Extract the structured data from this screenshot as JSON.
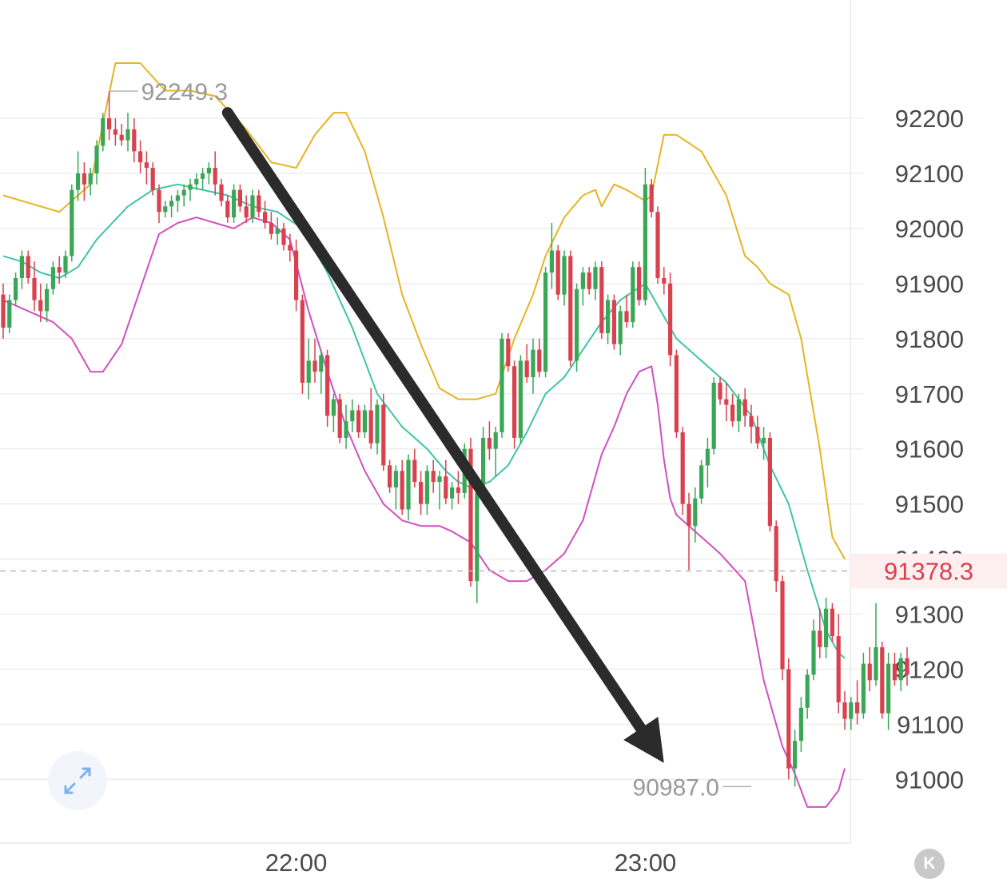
{
  "chart_data": {
    "type": "candlestick",
    "y_ticks": [
      "92200",
      "92100",
      "92000",
      "91900",
      "91800",
      "91700",
      "91600",
      "91500",
      "91400",
      "91300",
      "91200",
      "91100",
      "91000"
    ],
    "ylim": [
      90870,
      92400
    ],
    "x_ticks": [
      {
        "label": "22:00",
        "index": 47
      },
      {
        "label": "23:00",
        "index": 103
      }
    ],
    "high_marker": {
      "label": "92249.3",
      "value": 92249.3,
      "index": 17
    },
    "low_marker": {
      "label": "90987.0",
      "value": 90987.0,
      "index": 120
    },
    "current_price": {
      "label": "91378.3",
      "value": 91378.3
    },
    "colors": {
      "up": "#3aa757",
      "down": "#d9414e",
      "upper_band": "#e6b422",
      "mid_band": "#3ec4a6",
      "lower_band": "#d24fbf",
      "arrow": "#2b2b2b",
      "grid": "#eeeeee"
    },
    "candles": [
      [
        91880,
        91900,
        91800,
        91820
      ],
      [
        91820,
        91880,
        91810,
        91870
      ],
      [
        91870,
        91920,
        91860,
        91910
      ],
      [
        91910,
        91960,
        91890,
        91950
      ],
      [
        91950,
        91960,
        91900,
        91910
      ],
      [
        91910,
        91940,
        91850,
        91870
      ],
      [
        91870,
        91900,
        91830,
        91850
      ],
      [
        91850,
        91900,
        91830,
        91890
      ],
      [
        91890,
        91940,
        91880,
        91930
      ],
      [
        91930,
        91950,
        91900,
        91920
      ],
      [
        91920,
        91960,
        91910,
        91950
      ],
      [
        91950,
        92080,
        91940,
        92070
      ],
      [
        92070,
        92140,
        92050,
        92100
      ],
      [
        92100,
        92120,
        92050,
        92080
      ],
      [
        92080,
        92110,
        92060,
        92100
      ],
      [
        92100,
        92160,
        92080,
        92150
      ],
      [
        92150,
        92210,
        92140,
        92200
      ],
      [
        92200,
        92249,
        92160,
        92180
      ],
      [
        92180,
        92200,
        92150,
        92170
      ],
      [
        92170,
        92190,
        92150,
        92160
      ],
      [
        92160,
        92210,
        92140,
        92180
      ],
      [
        92180,
        92200,
        92120,
        92140
      ],
      [
        92140,
        92160,
        92100,
        92120
      ],
      [
        92120,
        92140,
        92080,
        92110
      ],
      [
        92110,
        92120,
        92060,
        92070
      ],
      [
        92070,
        92080,
        92010,
        92030
      ],
      [
        92030,
        92050,
        92020,
        92040
      ],
      [
        92040,
        92060,
        92020,
        92050
      ],
      [
        92050,
        92070,
        92030,
        92060
      ],
      [
        92060,
        92080,
        92040,
        92070
      ],
      [
        92070,
        92090,
        92050,
        92080
      ],
      [
        92080,
        92100,
        92070,
        92090
      ],
      [
        92090,
        92110,
        92070,
        92100
      ],
      [
        92100,
        92120,
        92080,
        92110
      ],
      [
        92110,
        92140,
        92060,
        92080
      ],
      [
        92080,
        92090,
        92040,
        92050
      ],
      [
        92050,
        92060,
        92010,
        92020
      ],
      [
        92020,
        92080,
        92010,
        92070
      ],
      [
        92070,
        92080,
        92030,
        92040
      ],
      [
        92040,
        92060,
        92010,
        92020
      ],
      [
        92020,
        92070,
        92010,
        92060
      ],
      [
        92060,
        92070,
        92020,
        92030
      ],
      [
        92030,
        92050,
        92000,
        92010
      ],
      [
        92010,
        92030,
        91980,
        91990
      ],
      [
        91990,
        92020,
        91970,
        92000
      ],
      [
        92000,
        92010,
        91960,
        91970
      ],
      [
        91970,
        91990,
        91940,
        91960
      ],
      [
        91960,
        91980,
        91850,
        91870
      ],
      [
        91870,
        91880,
        91700,
        91720
      ],
      [
        91720,
        91800,
        91690,
        91760
      ],
      [
        91760,
        91800,
        91720,
        91740
      ],
      [
        91740,
        91780,
        91700,
        91770
      ],
      [
        91770,
        91780,
        91640,
        91660
      ],
      [
        91660,
        91700,
        91630,
        91690
      ],
      [
        91690,
        91700,
        91610,
        91620
      ],
      [
        91620,
        91680,
        91600,
        91650
      ],
      [
        91650,
        91690,
        91630,
        91670
      ],
      [
        91670,
        91680,
        91620,
        91630
      ],
      [
        91630,
        91680,
        91620,
        91670
      ],
      [
        91670,
        91710,
        91600,
        91610
      ],
      [
        91610,
        91690,
        91590,
        91680
      ],
      [
        91680,
        91700,
        91560,
        91570
      ],
      [
        91570,
        91580,
        91520,
        91530
      ],
      [
        91530,
        91570,
        91490,
        91560
      ],
      [
        91560,
        91580,
        91480,
        91490
      ],
      [
        91490,
        91590,
        91470,
        91580
      ],
      [
        91580,
        91600,
        91530,
        91540
      ],
      [
        91540,
        91560,
        91480,
        91500
      ],
      [
        91500,
        91570,
        91480,
        91560
      ],
      [
        91560,
        91580,
        91520,
        91540
      ],
      [
        91540,
        91560,
        91490,
        91550
      ],
      [
        91550,
        91580,
        91500,
        91510
      ],
      [
        91510,
        91540,
        91490,
        91530
      ],
      [
        91530,
        91560,
        91500,
        91520
      ],
      [
        91520,
        91610,
        91510,
        91600
      ],
      [
        91600,
        91620,
        91350,
        91360
      ],
      [
        91360,
        91540,
        91320,
        91520
      ],
      [
        91520,
        91640,
        91500,
        91620
      ],
      [
        91620,
        91650,
        91580,
        91600
      ],
      [
        91600,
        91640,
        91550,
        91630
      ],
      [
        91630,
        91810,
        91620,
        91800
      ],
      [
        91800,
        91810,
        91740,
        91750
      ],
      [
        91750,
        91760,
        91600,
        91620
      ],
      [
        91620,
        91770,
        91610,
        91760
      ],
      [
        91760,
        91790,
        91720,
        91730
      ],
      [
        91730,
        91800,
        91700,
        91780
      ],
      [
        91780,
        91800,
        91730,
        91740
      ],
      [
        91740,
        91930,
        91730,
        91920
      ],
      [
        91920,
        92010,
        91890,
        91960
      ],
      [
        91960,
        91970,
        91870,
        91880
      ],
      [
        91880,
        91960,
        91860,
        91950
      ],
      [
        91950,
        91960,
        91750,
        91760
      ],
      [
        91760,
        91900,
        91740,
        91890
      ],
      [
        91890,
        91930,
        91860,
        91920
      ],
      [
        91920,
        91930,
        91880,
        91890
      ],
      [
        91890,
        91940,
        91870,
        91930
      ],
      [
        91930,
        91940,
        91800,
        91810
      ],
      [
        91810,
        91880,
        91790,
        91870
      ],
      [
        91870,
        91880,
        91780,
        91790
      ],
      [
        91790,
        91860,
        91770,
        91850
      ],
      [
        91850,
        91880,
        91820,
        91830
      ],
      [
        91830,
        91940,
        91820,
        91930
      ],
      [
        91930,
        91940,
        91860,
        91870
      ],
      [
        91870,
        92110,
        91860,
        92080
      ],
      [
        92080,
        92090,
        92020,
        92030
      ],
      [
        92030,
        92040,
        91900,
        91910
      ],
      [
        91910,
        91930,
        91880,
        91900
      ],
      [
        91900,
        91920,
        91750,
        91770
      ],
      [
        91770,
        91780,
        91620,
        91630
      ],
      [
        91630,
        91640,
        91480,
        91500
      ],
      [
        91500,
        91520,
        91380,
        91460
      ],
      [
        91460,
        91530,
        91430,
        91510
      ],
      [
        91510,
        91580,
        91500,
        91570
      ],
      [
        91570,
        91620,
        91530,
        91600
      ],
      [
        91600,
        91730,
        91590,
        91720
      ],
      [
        91720,
        91730,
        91680,
        91690
      ],
      [
        91690,
        91720,
        91650,
        91680
      ],
      [
        91680,
        91700,
        91640,
        91650
      ],
      [
        91650,
        91700,
        91630,
        91690
      ],
      [
        91690,
        91710,
        91640,
        91660
      ],
      [
        91660,
        91680,
        91610,
        91640
      ],
      [
        91640,
        91660,
        91600,
        91610
      ],
      [
        91610,
        91640,
        91580,
        91620
      ],
      [
        91620,
        91630,
        91450,
        91460
      ],
      [
        91460,
        91470,
        91340,
        91360
      ],
      [
        91360,
        91370,
        91180,
        91200
      ],
      [
        91200,
        91220,
        91000,
        91020
      ],
      [
        91020,
        91090,
        90987,
        91070
      ],
      [
        91070,
        91150,
        91050,
        91130
      ],
      [
        91130,
        91200,
        91110,
        91190
      ],
      [
        91190,
        91290,
        91180,
        91270
      ],
      [
        91270,
        91310,
        91220,
        91240
      ],
      [
        91240,
        91330,
        91220,
        91310
      ],
      [
        91310,
        91320,
        91250,
        91260
      ],
      [
        91260,
        91300,
        91120,
        91140
      ],
      [
        91140,
        91160,
        91090,
        91110
      ],
      [
        91110,
        91150,
        91090,
        91140
      ],
      [
        91140,
        91180,
        91100,
        91120
      ],
      [
        91120,
        91230,
        91110,
        91210
      ],
      [
        91210,
        91240,
        91160,
        91180
      ],
      [
        91180,
        91320,
        91170,
        91240
      ],
      [
        91240,
        91250,
        91110,
        91120
      ],
      [
        91120,
        91230,
        91090,
        91210
      ],
      [
        91210,
        91230,
        91170,
        91180
      ],
      [
        91180,
        91230,
        91160,
        91220
      ],
      [
        91220,
        91240,
        91170,
        91190
      ]
    ],
    "upper_band": [
      [
        0,
        92060
      ],
      [
        3,
        92050
      ],
      [
        9,
        92030
      ],
      [
        12,
        92060
      ],
      [
        14,
        92080
      ],
      [
        18,
        92300
      ],
      [
        22,
        92300
      ],
      [
        26,
        92250
      ],
      [
        30,
        92250
      ],
      [
        34,
        92240
      ],
      [
        39,
        92180
      ],
      [
        43,
        92120
      ],
      [
        47,
        92110
      ],
      [
        50,
        92170
      ],
      [
        53,
        92210
      ],
      [
        55,
        92210
      ],
      [
        58,
        92140
      ],
      [
        61,
        92020
      ],
      [
        64,
        91880
      ],
      [
        67,
        91790
      ],
      [
        70,
        91710
      ],
      [
        73,
        91690
      ],
      [
        76,
        91690
      ],
      [
        79,
        91700
      ],
      [
        82,
        91800
      ],
      [
        85,
        91880
      ],
      [
        87,
        91950
      ],
      [
        90,
        92020
      ],
      [
        93,
        92060
      ],
      [
        95,
        92070
      ],
      [
        96,
        92040
      ],
      [
        98,
        92080
      ],
      [
        100,
        92070
      ],
      [
        103,
        92050
      ],
      [
        104,
        92060
      ],
      [
        106,
        92170
      ],
      [
        108,
        92170
      ],
      [
        112,
        92140
      ],
      [
        116,
        92060
      ],
      [
        119,
        91950
      ],
      [
        121,
        91930
      ],
      [
        123,
        91900
      ],
      [
        126,
        91880
      ],
      [
        128,
        91800
      ],
      [
        131,
        91600
      ],
      [
        133,
        91440
      ],
      [
        135,
        91400
      ]
    ],
    "mid_band": [
      [
        0,
        91950
      ],
      [
        3,
        91940
      ],
      [
        6,
        91920
      ],
      [
        9,
        91910
      ],
      [
        12,
        91930
      ],
      [
        15,
        91980
      ],
      [
        20,
        92040
      ],
      [
        24,
        92070
      ],
      [
        28,
        92080
      ],
      [
        32,
        92070
      ],
      [
        36,
        92060
      ],
      [
        40,
        92040
      ],
      [
        44,
        92030
      ],
      [
        48,
        92000
      ],
      [
        52,
        91920
      ],
      [
        56,
        91820
      ],
      [
        60,
        91700
      ],
      [
        64,
        91640
      ],
      [
        68,
        91600
      ],
      [
        71,
        91560
      ],
      [
        73,
        91540
      ],
      [
        75,
        91530
      ],
      [
        78,
        91540
      ],
      [
        81,
        91570
      ],
      [
        84,
        91630
      ],
      [
        87,
        91700
      ],
      [
        90,
        91730
      ],
      [
        93,
        91780
      ],
      [
        96,
        91830
      ],
      [
        99,
        91870
      ],
      [
        103,
        91900
      ],
      [
        105,
        91860
      ],
      [
        108,
        91800
      ],
      [
        112,
        91760
      ],
      [
        116,
        91720
      ],
      [
        120,
        91660
      ],
      [
        123,
        91570
      ],
      [
        126,
        91500
      ],
      [
        129,
        91380
      ],
      [
        132,
        91270
      ],
      [
        134,
        91230
      ],
      [
        135,
        91220
      ]
    ],
    "lower_band": [
      [
        0,
        91870
      ],
      [
        4,
        91850
      ],
      [
        8,
        91830
      ],
      [
        11,
        91800
      ],
      [
        14,
        91740
      ],
      [
        16,
        91740
      ],
      [
        19,
        91790
      ],
      [
        22,
        91890
      ],
      [
        25,
        91990
      ],
      [
        28,
        92010
      ],
      [
        31,
        92020
      ],
      [
        34,
        92010
      ],
      [
        37,
        92000
      ],
      [
        40,
        92020
      ],
      [
        43,
        92010
      ],
      [
        46,
        91980
      ],
      [
        49,
        91850
      ],
      [
        52,
        91740
      ],
      [
        55,
        91640
      ],
      [
        58,
        91560
      ],
      [
        61,
        91500
      ],
      [
        64,
        91470
      ],
      [
        67,
        91460
      ],
      [
        70,
        91460
      ],
      [
        72,
        91450
      ],
      [
        75,
        91430
      ],
      [
        78,
        91380
      ],
      [
        81,
        91360
      ],
      [
        84,
        91360
      ],
      [
        87,
        91380
      ],
      [
        90,
        91410
      ],
      [
        93,
        91470
      ],
      [
        96,
        91590
      ],
      [
        98,
        91640
      ],
      [
        100,
        91700
      ],
      [
        102,
        91740
      ],
      [
        104,
        91750
      ],
      [
        105,
        91680
      ],
      [
        106,
        91580
      ],
      [
        107,
        91510
      ],
      [
        108,
        91480
      ],
      [
        111,
        91450
      ],
      [
        115,
        91410
      ],
      [
        119,
        91360
      ],
      [
        122,
        91180
      ],
      [
        125,
        91060
      ],
      [
        127,
        91010
      ],
      [
        129,
        90950
      ],
      [
        132,
        90950
      ],
      [
        134,
        90980
      ],
      [
        135,
        91020
      ]
    ],
    "arrow": {
      "from": {
        "index": 36,
        "value": 92210
      },
      "to": {
        "index": 106,
        "value": 91030
      }
    }
  }
}
